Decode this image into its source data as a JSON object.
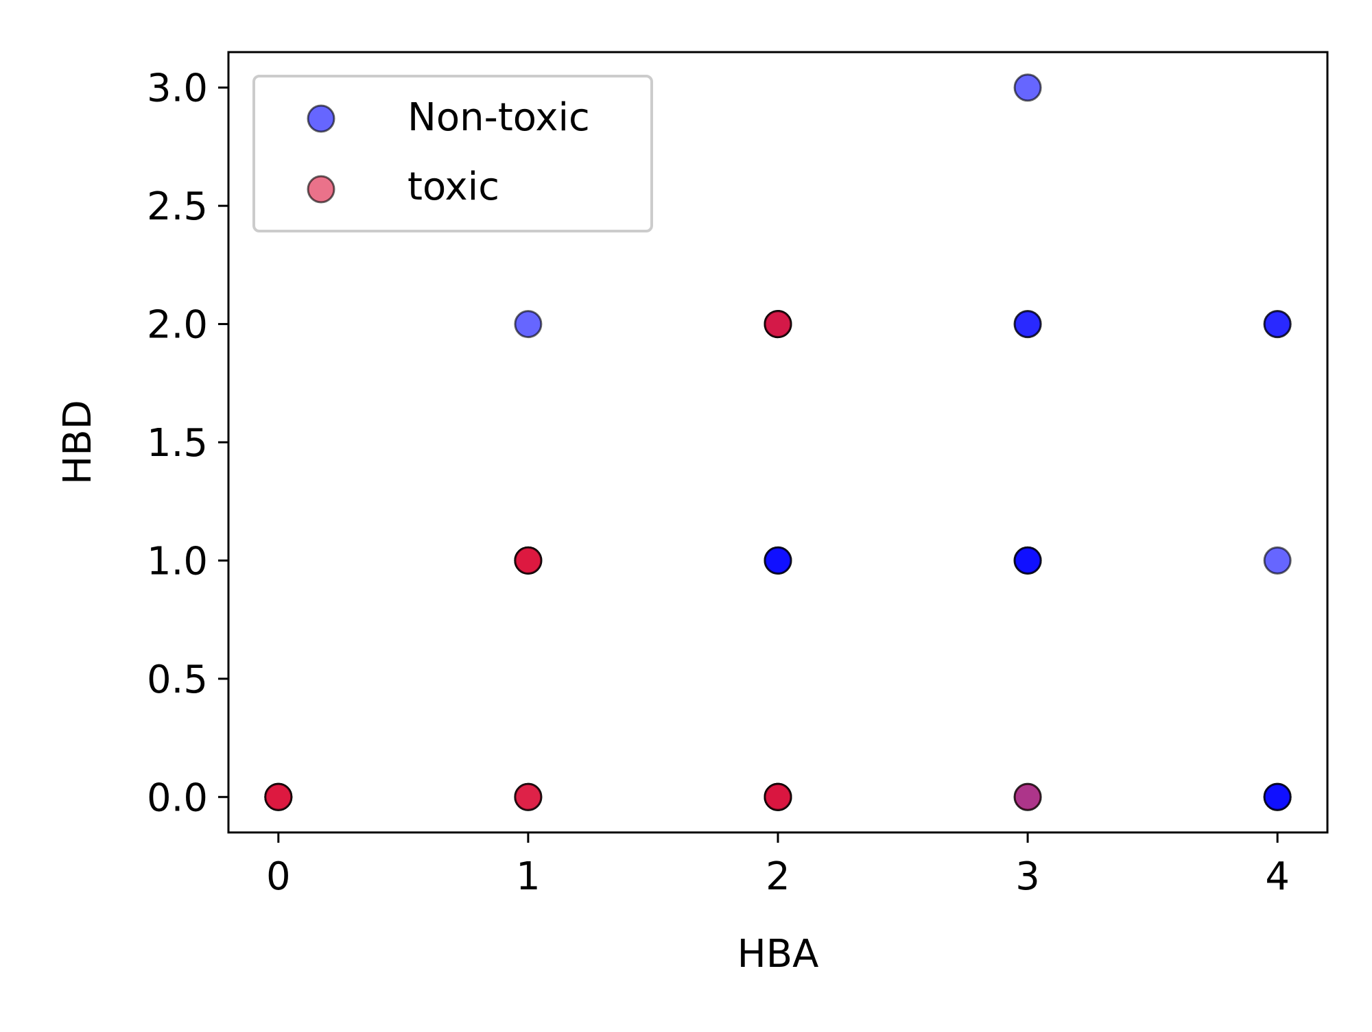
{
  "chart_data": {
    "type": "scatter",
    "title": "",
    "xlabel": "HBA",
    "ylabel": "HBD",
    "xlim": [
      -0.2,
      4.2
    ],
    "ylim": [
      -0.15,
      3.15
    ],
    "grid": false,
    "legend_position": "top-left",
    "x_ticks": [
      0,
      1,
      2,
      3,
      4
    ],
    "x_tick_labels": [
      "0",
      "1",
      "2",
      "3",
      "4"
    ],
    "y_ticks": [
      0.0,
      0.5,
      1.0,
      1.5,
      2.0,
      2.5,
      3.0
    ],
    "y_tick_labels": [
      "0.0",
      "0.5",
      "1.0",
      "1.5",
      "2.0",
      "2.5",
      "3.0"
    ],
    "series": [
      {
        "name": "Non-toxic",
        "color": "#0000ff",
        "alpha": 0.6,
        "points": [
          {
            "x": 1,
            "y": 2
          },
          {
            "x": 2,
            "y": 1
          },
          {
            "x": 2,
            "y": 1
          },
          {
            "x": 2,
            "y": 1
          },
          {
            "x": 3,
            "y": 3
          },
          {
            "x": 3,
            "y": 2
          },
          {
            "x": 3,
            "y": 2
          },
          {
            "x": 3,
            "y": 1
          },
          {
            "x": 3,
            "y": 1
          },
          {
            "x": 3,
            "y": 1
          },
          {
            "x": 3,
            "y": 0
          },
          {
            "x": 4,
            "y": 2
          },
          {
            "x": 4,
            "y": 2
          },
          {
            "x": 4,
            "y": 1
          },
          {
            "x": 4,
            "y": 0
          },
          {
            "x": 4,
            "y": 0
          },
          {
            "x": 4,
            "y": 0
          },
          {
            "x": 2,
            "y": 0
          },
          {
            "x": 2,
            "y": 2
          }
        ]
      },
      {
        "name": "toxic",
        "color": "#dc143c",
        "alpha": 0.6,
        "points": [
          {
            "x": 0,
            "y": 0
          },
          {
            "x": 0,
            "y": 0
          },
          {
            "x": 0,
            "y": 0
          },
          {
            "x": 0,
            "y": 0
          },
          {
            "x": 1,
            "y": 1
          },
          {
            "x": 1,
            "y": 1
          },
          {
            "x": 1,
            "y": 1
          },
          {
            "x": 1,
            "y": 1
          },
          {
            "x": 1,
            "y": 0
          },
          {
            "x": 1,
            "y": 0
          },
          {
            "x": 1,
            "y": 0
          },
          {
            "x": 2,
            "y": 2
          },
          {
            "x": 2,
            "y": 2
          },
          {
            "x": 2,
            "y": 2
          },
          {
            "x": 2,
            "y": 0
          },
          {
            "x": 2,
            "y": 0
          },
          {
            "x": 2,
            "y": 0
          },
          {
            "x": 2,
            "y": 0
          },
          {
            "x": 3,
            "y": 0
          }
        ]
      }
    ]
  }
}
